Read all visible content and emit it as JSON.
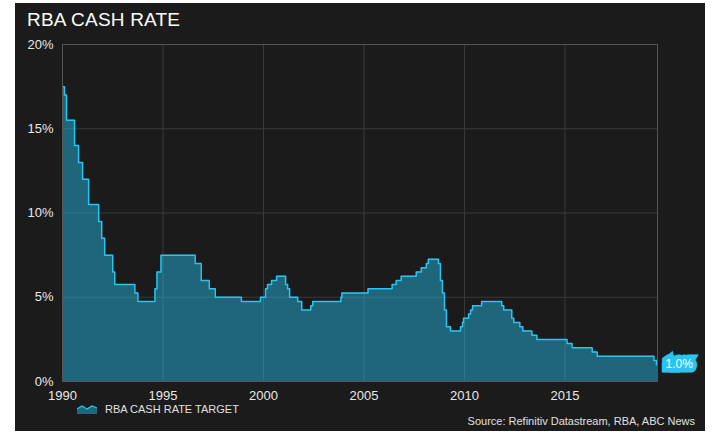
{
  "chart_data": {
    "type": "area",
    "title": "RBA CASH RATE",
    "caption": "Source: Refinitiv Datastream, RBA, ABC News",
    "x": [
      1990.0,
      1990.1,
      1990.2,
      1990.6,
      1990.8,
      1991.0,
      1991.3,
      1991.8,
      1991.95,
      1992.1,
      1992.5,
      1992.6,
      1993.6,
      1993.75,
      1994.6,
      1994.7,
      1994.9,
      1996.6,
      1996.9,
      1997.3,
      1997.6,
      1998.9,
      1999.85,
      2000.1,
      2000.2,
      2000.4,
      2000.65,
      2001.1,
      2001.2,
      2001.3,
      2001.7,
      2001.9,
      2002.35,
      2002.45,
      2003.85,
      2003.9,
      2005.2,
      2006.4,
      2006.6,
      2006.85,
      2007.6,
      2007.85,
      2008.1,
      2008.2,
      2008.7,
      2008.8,
      2008.9,
      2009.0,
      2009.1,
      2009.3,
      2009.8,
      2009.9,
      2009.95,
      2010.2,
      2010.3,
      2010.4,
      2010.85,
      2011.85,
      2011.95,
      2012.35,
      2012.45,
      2012.75,
      2012.9,
      2013.35,
      2013.6,
      2015.1,
      2015.35,
      2016.35,
      2016.6,
      2019.42,
      2019.55,
      2019.6
    ],
    "series": [
      {
        "name": "RBA CASH RATE TARGET",
        "color": "#29c4f2",
        "values": [
          17.5,
          17.0,
          15.5,
          14.0,
          13.0,
          12.0,
          10.5,
          9.5,
          8.5,
          7.5,
          6.5,
          5.75,
          5.25,
          4.75,
          5.5,
          6.5,
          7.5,
          7.0,
          6.0,
          5.5,
          5.0,
          4.75,
          5.0,
          5.5,
          5.75,
          6.0,
          6.25,
          5.75,
          5.5,
          5.0,
          4.75,
          4.25,
          4.5,
          4.75,
          5.0,
          5.25,
          5.5,
          5.75,
          6.0,
          6.25,
          6.5,
          6.75,
          7.0,
          7.25,
          7.0,
          6.0,
          5.25,
          4.25,
          3.25,
          3.0,
          3.25,
          3.5,
          3.75,
          4.0,
          4.25,
          4.5,
          4.75,
          4.5,
          4.25,
          3.75,
          3.5,
          3.25,
          3.0,
          2.75,
          2.5,
          2.25,
          2.0,
          1.75,
          1.5,
          1.25,
          1.0,
          1.0
        ]
      }
    ],
    "xlim": [
      1990,
      2019.6
    ],
    "xticks": [
      1990,
      1995,
      2000,
      2005,
      2010,
      2015
    ],
    "ylim": [
      0,
      20
    ],
    "yticks": [
      {
        "value": 0,
        "label": "0%"
      },
      {
        "value": 5,
        "label": "5%"
      },
      {
        "value": 10,
        "label": "10%"
      },
      {
        "value": 15,
        "label": "15%"
      },
      {
        "value": 20,
        "label": "20%"
      }
    ],
    "annotations": [
      {
        "text": "1.0%",
        "x": 2019.6,
        "y": 1.0
      }
    ],
    "grid": true,
    "legend": "bottom-left"
  }
}
